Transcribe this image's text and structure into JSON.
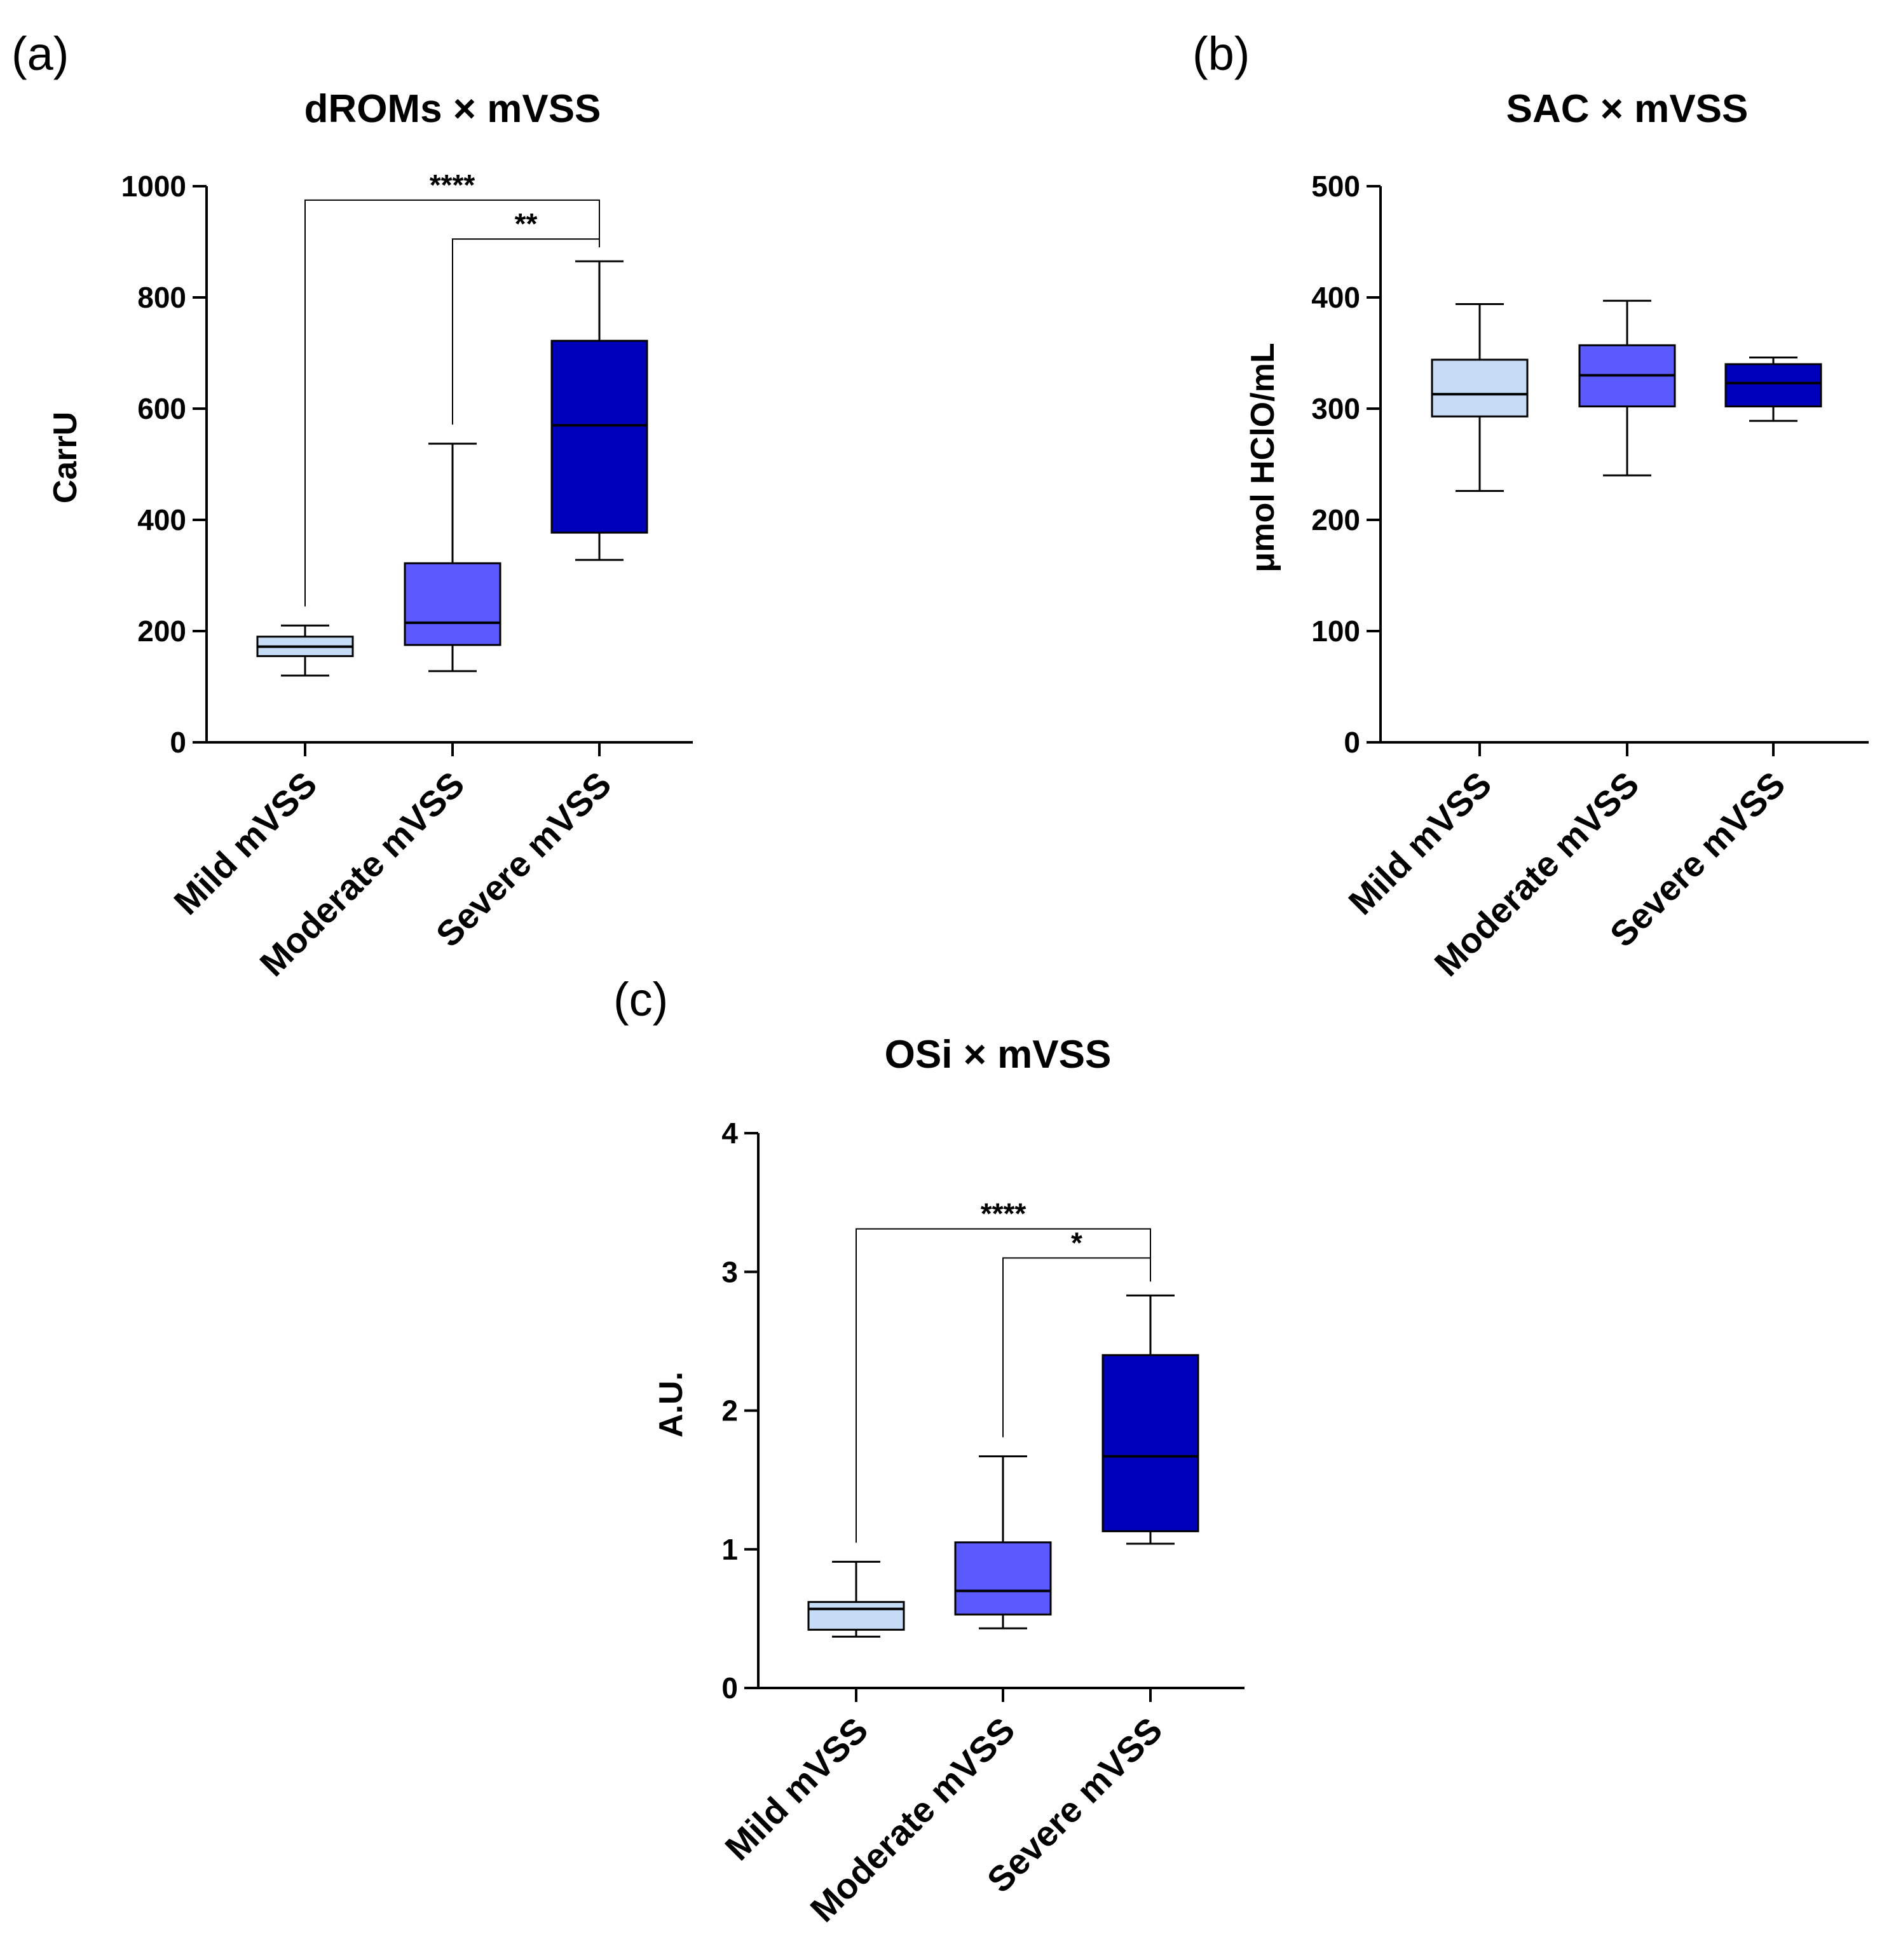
{
  "chart_data": [
    {
      "type": "box",
      "panel_label": "(a)",
      "title": "dROMs × mVSS",
      "ylabel": "CarrU",
      "xlabel": "",
      "ylim": [
        0,
        1000
      ],
      "yticks": [
        0,
        200,
        400,
        600,
        800,
        1000
      ],
      "categories": [
        "Mild mVSS",
        "Moderate mVSS",
        "Severe mVSS"
      ],
      "colors": [
        "#c5dbf6",
        "#5a5aff",
        "#0000bb"
      ],
      "boxes": [
        {
          "min": 120,
          "q1": 155,
          "median": 172,
          "q3": 190,
          "max": 210
        },
        {
          "min": 128,
          "q1": 175,
          "median": 215,
          "q3": 322,
          "max": 537
        },
        {
          "min": 328,
          "q1": 377,
          "median": 570,
          "q3": 722,
          "max": 865
        }
      ],
      "significance": [
        {
          "from": 0,
          "to": 2,
          "label": "****",
          "y": 975
        },
        {
          "from": 1,
          "to": 2,
          "label": "**",
          "y": 905
        }
      ],
      "grid": false
    },
    {
      "type": "box",
      "panel_label": "(b)",
      "title": "SAC × mVSS",
      "ylabel": "μmol HClO/mL",
      "xlabel": "",
      "ylim": [
        0,
        500
      ],
      "yticks": [
        0,
        100,
        200,
        300,
        400,
        500
      ],
      "categories": [
        "Mild mVSS",
        "Moderate mVSS",
        "Severe mVSS"
      ],
      "colors": [
        "#c5dbf6",
        "#5a5aff",
        "#0000bb"
      ],
      "boxes": [
        {
          "min": 226,
          "q1": 293,
          "median": 313,
          "q3": 344,
          "max": 394
        },
        {
          "min": 240,
          "q1": 302,
          "median": 330,
          "q3": 357,
          "max": 397
        },
        {
          "min": 289,
          "q1": 302,
          "median": 323,
          "q3": 340,
          "max": 346
        }
      ],
      "significance": [],
      "grid": false
    },
    {
      "type": "box",
      "panel_label": "(c)",
      "title": "OSi × mVSS",
      "ylabel": "A.U.",
      "xlabel": "",
      "ylim": [
        0,
        4
      ],
      "yticks": [
        0,
        1,
        2,
        3,
        4
      ],
      "categories": [
        "Mild mVSS",
        "Moderate mVSS",
        "Severe mVSS"
      ],
      "colors": [
        "#c5dbf6",
        "#5a5aff",
        "#0000bb"
      ],
      "boxes": [
        {
          "min": 0.37,
          "q1": 0.42,
          "median": 0.57,
          "q3": 0.62,
          "max": 0.91
        },
        {
          "min": 0.43,
          "q1": 0.53,
          "median": 0.7,
          "q3": 1.05,
          "max": 1.67
        },
        {
          "min": 1.04,
          "q1": 1.13,
          "median": 1.67,
          "q3": 2.4,
          "max": 2.83
        }
      ],
      "significance": [
        {
          "from": 0,
          "to": 2,
          "label": "****",
          "y": 3.31
        },
        {
          "from": 1,
          "to": 2,
          "label": "*",
          "y": 3.1
        }
      ],
      "grid": false
    }
  ]
}
